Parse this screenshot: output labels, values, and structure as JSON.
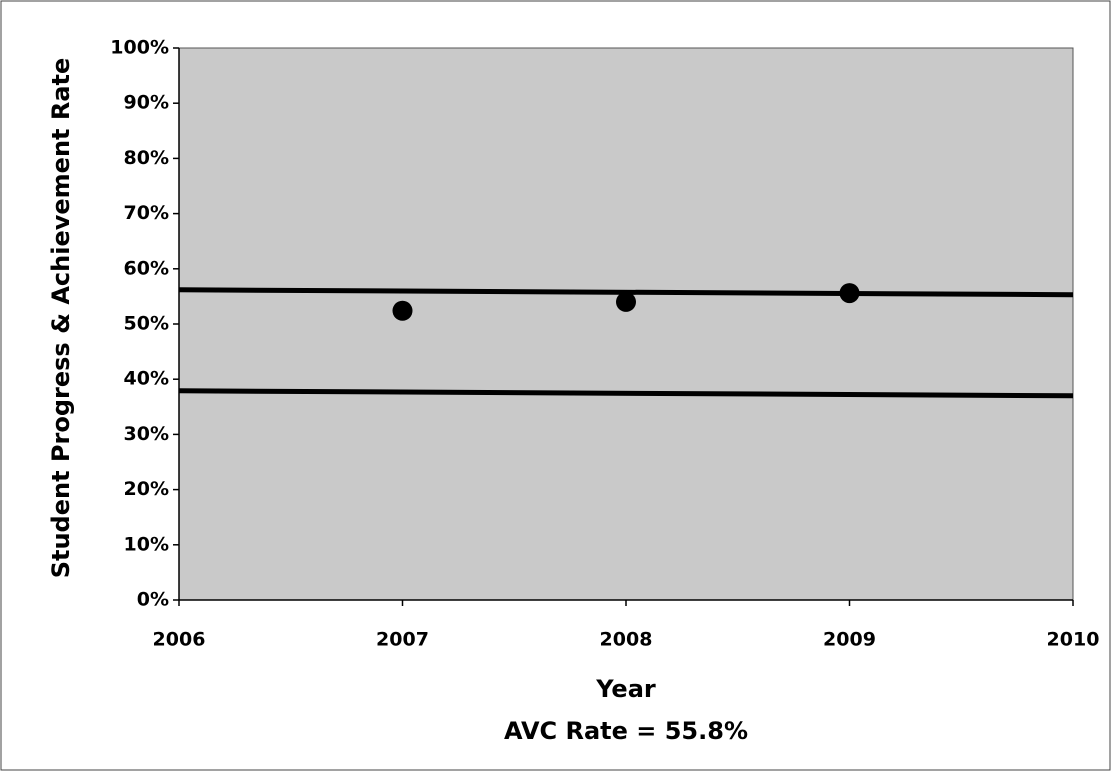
{
  "chart_data": {
    "type": "scatter",
    "x_label": "Year",
    "y_label": "Student Progress & Achievement Rate",
    "annotation": "AVC Rate = 55.8%",
    "xlim": [
      2006,
      2010
    ],
    "xticks": [
      2006,
      2007,
      2008,
      2009,
      2010
    ],
    "ylim": [
      0,
      100
    ],
    "yticks": [
      {
        "value": 0,
        "label": "0%"
      },
      {
        "value": 10,
        "label": "10%"
      },
      {
        "value": 20,
        "label": "20%"
      },
      {
        "value": 30,
        "label": "30%"
      },
      {
        "value": 40,
        "label": "40%"
      },
      {
        "value": 50,
        "label": "50%"
      },
      {
        "value": 60,
        "label": "60%"
      },
      {
        "value": 70,
        "label": "70%"
      },
      {
        "value": 80,
        "label": "80%"
      },
      {
        "value": 90,
        "label": "90%"
      },
      {
        "value": 100,
        "label": "100%"
      }
    ],
    "plot_background": "#c9c9c9",
    "series": [
      {
        "mode": "markers",
        "color": "#000000",
        "x": [
          2007,
          2008,
          2009
        ],
        "values": [
          52.4,
          54.0,
          55.6
        ]
      },
      {
        "mode": "lines",
        "color": "#000000",
        "x": [
          2006,
          2010
        ],
        "values": [
          56.2,
          55.3
        ]
      },
      {
        "mode": "lines",
        "color": "#000000",
        "x": [
          2006,
          2010
        ],
        "values": [
          37.9,
          37.0
        ]
      }
    ]
  }
}
